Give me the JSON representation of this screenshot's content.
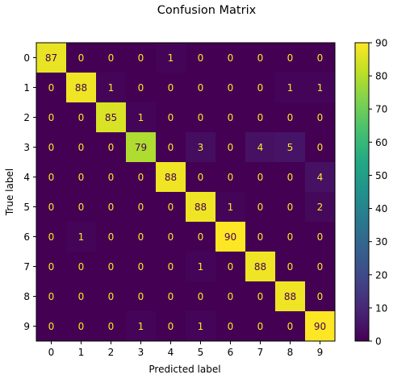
{
  "chart_data": {
    "type": "heatmap",
    "title": "Confusion Matrix",
    "xlabel": "Predicted label",
    "ylabel": "True label",
    "x_categories": [
      "0",
      "1",
      "2",
      "3",
      "4",
      "5",
      "6",
      "7",
      "8",
      "9"
    ],
    "y_categories": [
      "0",
      "1",
      "2",
      "3",
      "4",
      "5",
      "6",
      "7",
      "8",
      "9"
    ],
    "values": [
      [
        87,
        0,
        0,
        0,
        1,
        0,
        0,
        0,
        0,
        0
      ],
      [
        0,
        88,
        1,
        0,
        0,
        0,
        0,
        0,
        1,
        1
      ],
      [
        0,
        0,
        85,
        1,
        0,
        0,
        0,
        0,
        0,
        0
      ],
      [
        0,
        0,
        0,
        79,
        0,
        3,
        0,
        4,
        5,
        0
      ],
      [
        0,
        0,
        0,
        0,
        88,
        0,
        0,
        0,
        0,
        4
      ],
      [
        0,
        0,
        0,
        0,
        0,
        88,
        1,
        0,
        0,
        2
      ],
      [
        0,
        1,
        0,
        0,
        0,
        0,
        90,
        0,
        0,
        0
      ],
      [
        0,
        0,
        0,
        0,
        0,
        1,
        0,
        88,
        0,
        0
      ],
      [
        0,
        0,
        0,
        0,
        0,
        0,
        0,
        0,
        88,
        0
      ],
      [
        0,
        0,
        0,
        1,
        0,
        1,
        0,
        0,
        0,
        90
      ]
    ],
    "colormap": "viridis",
    "vmin": 0,
    "vmax": 90,
    "colorbar_ticks": [
      0,
      10,
      20,
      30,
      40,
      50,
      60,
      70,
      80,
      90
    ],
    "colorbar_tick_labels": [
      "0",
      "10",
      "20",
      "30",
      "40",
      "50",
      "60",
      "70",
      "80",
      "90"
    ],
    "text_color_low": "#fde725",
    "text_color_high": "#440154"
  }
}
